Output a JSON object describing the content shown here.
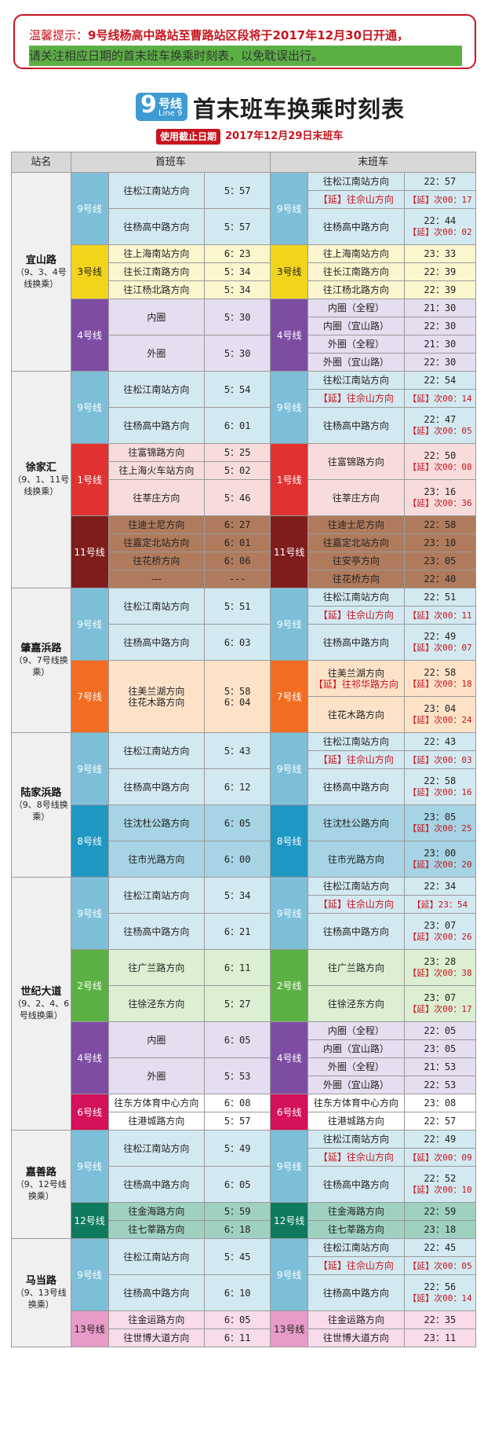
{
  "notice": {
    "label": "温馨提示：",
    "highlight": "9号线杨高中路站至曹路站区段将于2017年12月30日开通，",
    "line2": "请关注相应日期的首末班车换乘时刻表，以免耽误出行。"
  },
  "logo": {
    "number": "9",
    "text": "号线",
    "en": "Line 9"
  },
  "title": "首末班车换乘时刻表",
  "deadline_label": "使用截止日期",
  "deadline_date": "2017年12月29日末班车",
  "header": {
    "station": "站名",
    "first": "首班车",
    "last": "末班车"
  },
  "stations": [
    {
      "name": "宜山路",
      "sub": "（9、3、4号线换乘）",
      "lines": [
        {
          "line": "9号线",
          "cls": "9",
          "first": [
            [
              "往松江南站方向",
              "5：57"
            ],
            [
              "往杨高中路方向",
              "5：57"
            ]
          ],
          "last": [
            [
              "往松江南站方向",
              "22：57"
            ],
            [
              "【延】往佘山方向",
              "【延】次00：17",
              1
            ],
            [
              "往杨高中路方向",
              "22：44\n【延】次00：02"
            ]
          ]
        },
        {
          "line": "3号线",
          "cls": "3",
          "first": [
            [
              "往上海南站方向",
              "6：23"
            ],
            [
              "往长江南路方向",
              "5：34"
            ],
            [
              "往江杨北路方向",
              "5：34"
            ]
          ],
          "last": [
            [
              "往上海南站方向",
              "23：33"
            ],
            [
              "往长江南路方向",
              "22：39"
            ],
            [
              "往江杨北路方向",
              "22：39"
            ]
          ]
        },
        {
          "line": "4号线",
          "cls": "4",
          "first": [
            [
              "内圈",
              "5：30"
            ],
            [
              "外圈",
              "5：30"
            ]
          ],
          "last": [
            [
              "内圈（全程）",
              "21：30"
            ],
            [
              "内圈（宜山路）",
              "22：30"
            ],
            [
              "外圈（全程）",
              "21：30"
            ],
            [
              "外圈（宜山路）",
              "22：30"
            ]
          ]
        }
      ]
    },
    {
      "name": "徐家汇",
      "sub": "（9、1、11号线换乘）",
      "lines": [
        {
          "line": "9号线",
          "cls": "9",
          "first": [
            [
              "往松江南站方向",
              "5：54"
            ],
            [
              "往杨高中路方向",
              "6：01"
            ]
          ],
          "last": [
            [
              "往松江南站方向",
              "22：54"
            ],
            [
              "【延】往佘山方向",
              "【延】次00：14",
              1
            ],
            [
              "往杨高中路方向",
              "22：47\n【延】次00：05"
            ]
          ]
        },
        {
          "line": "1号线",
          "cls": "1",
          "first": [
            [
              "往富锦路方向",
              "5：25"
            ],
            [
              "往上海火车站方向",
              "5：02"
            ],
            [
              "往莘庄方向",
              "5：46"
            ]
          ],
          "last": [
            [
              "往富锦路方向",
              "22：50\n【延】次00：08"
            ],
            [
              "往莘庄方向",
              "23：16\n【延】次00：36"
            ]
          ]
        },
        {
          "line": "11号线",
          "cls": "11",
          "first": [
            [
              "往迪士尼方向",
              "6：27"
            ],
            [
              "往嘉定北站方向",
              "6：01"
            ],
            [
              "往花桥方向",
              "6：06"
            ],
            [
              "---",
              "---"
            ]
          ],
          "last": [
            [
              "往迪士尼方向",
              "22：58"
            ],
            [
              "往嘉定北站方向",
              "23：10"
            ],
            [
              "往安亭方向",
              "23：05"
            ],
            [
              "往花桥方向",
              "22：40"
            ]
          ]
        }
      ]
    },
    {
      "name": "肇嘉浜路",
      "sub": "（9、7号线换乘）",
      "lines": [
        {
          "line": "9号线",
          "cls": "9",
          "first": [
            [
              "往松江南站方向",
              "5：51"
            ],
            [
              "往杨高中路方向",
              "6：03"
            ]
          ],
          "last": [
            [
              "往松江南站方向",
              "22：51"
            ],
            [
              "【延】往佘山方向",
              "【延】次00：11",
              1
            ],
            [
              "往杨高中路方向",
              "22：49\n【延】次00：07"
            ]
          ]
        },
        {
          "line": "7号线",
          "cls": "7",
          "first": [
            [
              "往美兰湖方向\n往花木路方向",
              "5：58\n6：04"
            ]
          ],
          "last": [
            [
              "往美兰湖方向\n【延】往祁华路方向",
              "22：58\n【延】次00：18"
            ],
            [
              "往花木路方向",
              "23：04\n【延】次00：24"
            ]
          ]
        }
      ]
    },
    {
      "name": "陆家浜路",
      "sub": "（9、8号线换乘）",
      "lines": [
        {
          "line": "9号线",
          "cls": "9",
          "first": [
            [
              "往松江南站方向",
              "5：43"
            ],
            [
              "往杨高中路方向",
              "6：12"
            ]
          ],
          "last": [
            [
              "往松江南站方向",
              "22：43"
            ],
            [
              "【延】往佘山方向",
              "【延】次00：03",
              1
            ],
            [
              "往杨高中路方向",
              "22：58\n【延】次00：16"
            ]
          ]
        },
        {
          "line": "8号线",
          "cls": "8",
          "first": [
            [
              "往沈杜公路方向",
              "6：05"
            ],
            [
              "往市光路方向",
              "6：00"
            ]
          ],
          "last": [
            [
              "往沈杜公路方向",
              "23：05\n【延】次00：25"
            ],
            [
              "往市光路方向",
              "23：00\n【延】次00：20"
            ]
          ]
        }
      ]
    },
    {
      "name": "世纪大道",
      "sub": "（9、2、4、6号线换乘）",
      "lines": [
        {
          "line": "9号线",
          "cls": "9",
          "first": [
            [
              "往松江南站方向",
              "5：34"
            ],
            [
              "往杨高中路方向",
              "6：21"
            ]
          ],
          "last": [
            [
              "往松江南站方向",
              "22：34"
            ],
            [
              "【延】往佘山方向",
              "【延】23：54",
              1
            ],
            [
              "往杨高中路方向",
              "23：07\n【延】次00：26"
            ]
          ]
        },
        {
          "line": "2号线",
          "cls": "2",
          "first": [
            [
              "往广兰路方向",
              "6：11"
            ],
            [
              "往徐泾东方向",
              "5：27"
            ]
          ],
          "last": [
            [
              "往广兰路方向",
              "23：28\n【延】次00：38"
            ],
            [
              "往徐泾东方向",
              "23：07\n【延】次00：17"
            ]
          ]
        },
        {
          "line": "4号线",
          "cls": "4",
          "first": [
            [
              "内圈",
              "6：05"
            ],
            [
              "外圈",
              "5：53"
            ]
          ],
          "last": [
            [
              "内圈（全程）",
              "22：05"
            ],
            [
              "内圈（宜山路）",
              "23：05"
            ],
            [
              "外圈（全程）",
              "21：53"
            ],
            [
              "外圈（宜山路）",
              "22：53"
            ]
          ]
        },
        {
          "line": "6号线",
          "cls": "6",
          "first": [
            [
              "往东方体育中心方向",
              "6：08"
            ],
            [
              "往港城路方向",
              "5：57"
            ]
          ],
          "last": [
            [
              "往东方体育中心方向",
              "23：08"
            ],
            [
              "往港城路方向",
              "22：57"
            ]
          ]
        }
      ]
    },
    {
      "name": "嘉善路",
      "sub": "（9、12号线换乘）",
      "lines": [
        {
          "line": "9号线",
          "cls": "9",
          "first": [
            [
              "往松江南站方向",
              "5：49"
            ],
            [
              "往杨高中路方向",
              "6：05"
            ]
          ],
          "last": [
            [
              "往松江南站方向",
              "22：49"
            ],
            [
              "【延】往佘山方向",
              "【延】次00：09",
              1
            ],
            [
              "往杨高中路方向",
              "22：52\n【延】次00：10"
            ]
          ]
        },
        {
          "line": "12号线",
          "cls": "12",
          "first": [
            [
              "往金海路方向",
              "5：59"
            ],
            [
              "往七莘路方向",
              "6：18"
            ]
          ],
          "last": [
            [
              "往金海路方向",
              "22：59"
            ],
            [
              "往七莘路方向",
              "23：18"
            ]
          ]
        }
      ]
    },
    {
      "name": "马当路",
      "sub": "（9、13号线换乘）",
      "lines": [
        {
          "line": "9号线",
          "cls": "9",
          "first": [
            [
              "往松江南站方向",
              "5：45"
            ],
            [
              "往杨高中路方向",
              "6：10"
            ]
          ],
          "last": [
            [
              "往松江南站方向",
              "22：45"
            ],
            [
              "【延】往佘山方向",
              "【延】次00：05",
              1
            ],
            [
              "往杨高中路方向",
              "22：56\n【延】次00：14"
            ]
          ]
        },
        {
          "line": "13号线",
          "cls": "13",
          "first": [
            [
              "往金运路方向",
              "6：05"
            ],
            [
              "往世博大道方向",
              "6：11"
            ]
          ],
          "last": [
            [
              "往金运路方向",
              "22：35"
            ],
            [
              "往世博大道方向",
              "23：11"
            ]
          ]
        }
      ]
    }
  ]
}
